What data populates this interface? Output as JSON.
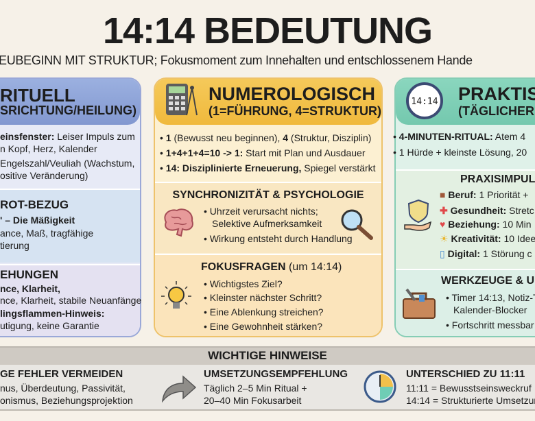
{
  "title": "14:14 BEDEUTUNG",
  "subtitle": "EUBEGINN MIT STRUKTUR; Fokusmoment zum Innehalten und entschlossenem Hande",
  "left": {
    "h1": "RITUELL",
    "h2": "SRICHTUNG/HEILUNG)",
    "s1": [
      {
        "b": "einsfenster:",
        "t": " Leiser Impuls zum"
      },
      {
        "b": "",
        "t": "n Kopf, Herz, Kalender"
      },
      {
        "b": "",
        "t": "Engelszahl/Veuliah (Wachstum,"
      },
      {
        "b": "",
        "t": "ositive Veränderung)"
      }
    ],
    "s2": {
      "title": "ROT-BEZUG",
      "l1": "' – Die Mäßigkeit",
      "l2": "ance, Maß, tragfähige",
      "l3": "tierung"
    },
    "s3": {
      "title": "EHUNGEN",
      "l1": "nce, Klarheit,",
      "l2": "nce, Klarheit, stabile Neuanfänge",
      "l3": "lingsflammen-Hinweis:",
      "l4": "utigung, keine Garantie"
    }
  },
  "mid": {
    "h1": "NUMEROLOGISCH",
    "h2": "(1=FÜHRUNG, 4=STRUKTUR)",
    "s1": [
      {
        "b": "1",
        "t": " (Bewusst neu beginnen), ",
        "b2": "4",
        "t2": " (Struktur, Disziplin)"
      },
      {
        "b": "1+4+1+4=10 -> 1:",
        "t": " Start mit Plan und Ausdauer",
        "b2": "",
        "t2": ""
      },
      {
        "b": "14: Disziplinierte Erneuerung,",
        "t": " Spiegel verstärkt",
        "b2": "",
        "t2": ""
      }
    ],
    "s2": {
      "title": "SYNCHRONIZITÄT & PSYCHOLOGIE",
      "l1": "Uhrzeit verursacht nichts;",
      "l2": "Selektive Aufmerksamkeit",
      "l3": "Wirkung entsteht durch Handlung"
    },
    "s3": {
      "title": "FOKUSFRAGEN",
      "title_suffix": " (um 14:14)",
      "items": [
        "Wichtigstes Ziel?",
        "Kleinster nächster Schritt?",
        "Eine Ablenkung streichen?",
        "Eine Gewohnheit stärken?"
      ]
    }
  },
  "right": {
    "h1": "PRAKTISC",
    "h2": "(TÄGLICHER AN",
    "s1": [
      {
        "b": "4-MINUTEN-RITUAL:",
        "t": " Atem 4"
      },
      {
        "b": "",
        "t": "1 Hürde + kleinste Lösung, 20"
      }
    ],
    "s2": {
      "title": "PRAXISIMPUL",
      "items": [
        {
          "b": "Beruf:",
          "t": " 1 Priorität +"
        },
        {
          "b": "Gesundheit:",
          "t": " Stretc"
        },
        {
          "b": "Beziehung:",
          "t": " 10 Min"
        },
        {
          "b": "Kreativität:",
          "t": " 10 Idee"
        },
        {
          "b": "Digital:",
          "t": " 1 Störung c"
        }
      ]
    },
    "s3": {
      "title": "WERKZEUGE & UN",
      "l1": "Timer 14:13, Notiz-T",
      "l2": "Kalender-Blocker",
      "l3": "Fortschritt messbar"
    }
  },
  "clock_label": "14:14",
  "bottom": {
    "title": "WICHTIGE HINWEISE",
    "c1": {
      "title": "GE FEHLER VERMEIDEN",
      "l1": "nus, Überdeutung, Passivität,",
      "l2": "onismus, Beziehungsprojektion"
    },
    "c2": {
      "title": "UMSETZUNGSEMPFEHLUNG",
      "l1": "Täglich 2–5 Min Ritual +",
      "l2": "20–40 Min Fokusarbeit"
    },
    "c3": {
      "title": "UNTERSCHIED ZU 11:11",
      "l1": "11:11 = Bewusstseinsweckruf",
      "l2": "14:14 = Strukturierte Umsetzun"
    }
  },
  "colors": {
    "blue": "#8fa3d8",
    "yellow": "#f2c04a",
    "teal": "#7fcfb8",
    "gray": "#cfcac3"
  }
}
